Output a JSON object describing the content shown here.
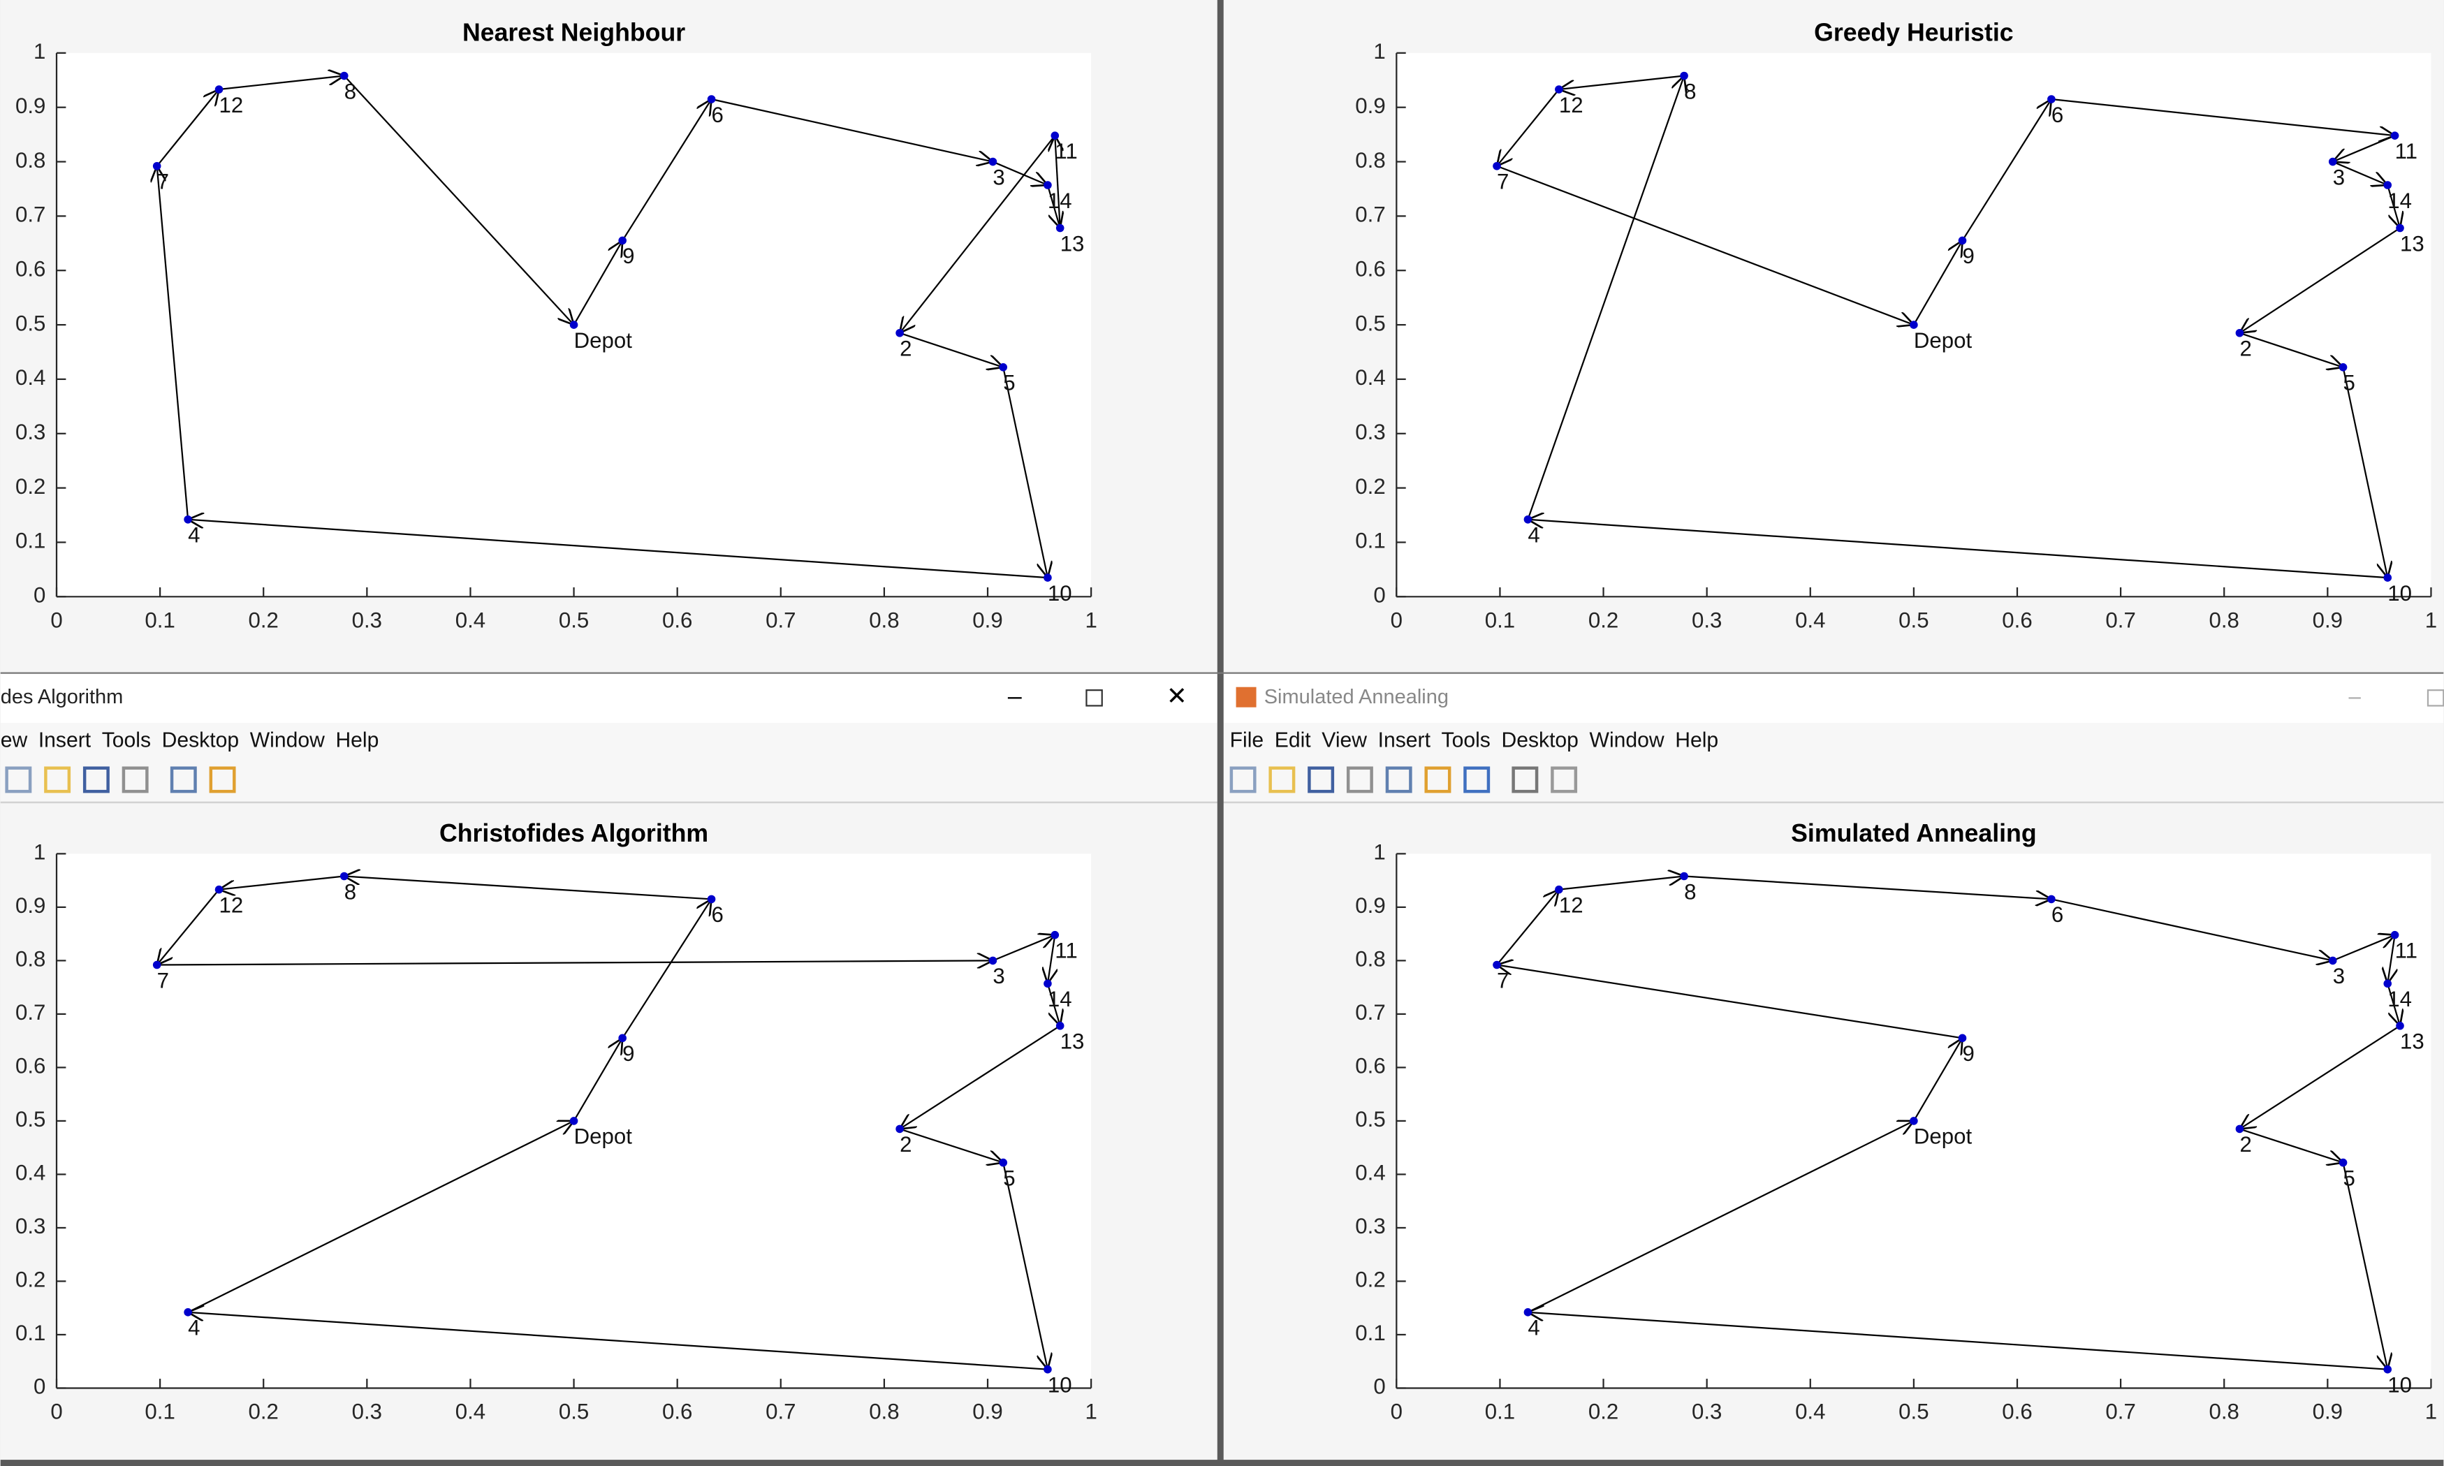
{
  "chart_data": [
    {
      "type": "route",
      "title": "Nearest Neighbour",
      "closed": true,
      "color": "#0000cc",
      "line_color": "#000000",
      "point_labels": [
        "Depot",
        "9",
        "6",
        "3",
        "14",
        "13",
        "11",
        "2",
        "5",
        "10",
        "4",
        "7",
        "12",
        "8"
      ],
      "x": [
        0.5,
        0.547,
        0.633,
        0.905,
        0.958,
        0.97,
        0.965,
        0.815,
        0.915,
        0.958,
        0.127,
        0.097,
        0.157,
        0.278
      ],
      "values": [
        0.5,
        0.655,
        0.915,
        0.8,
        0.757,
        0.678,
        0.848,
        0.485,
        0.422,
        0.035,
        0.142,
        0.792,
        0.933,
        0.958
      ],
      "xlim": [
        0,
        1
      ],
      "ylim": [
        0,
        1
      ],
      "xticks": [
        0,
        0.1,
        0.2,
        0.3,
        0.4,
        0.5,
        0.6,
        0.7,
        0.8,
        0.9,
        1
      ],
      "yticks": [
        0,
        0.1,
        0.2,
        0.3,
        0.4,
        0.5,
        0.6,
        0.7,
        0.8,
        0.9,
        1
      ]
    },
    {
      "type": "route",
      "title": "Greedy Heuristic",
      "closed": true,
      "color": "#0000cc",
      "line_color": "#000000",
      "point_labels": [
        "Depot",
        "9",
        "6",
        "11",
        "3",
        "14",
        "13",
        "2",
        "5",
        "10",
        "4",
        "8",
        "12",
        "7"
      ],
      "x": [
        0.5,
        0.547,
        0.633,
        0.965,
        0.905,
        0.958,
        0.97,
        0.815,
        0.915,
        0.958,
        0.127,
        0.278,
        0.157,
        0.097
      ],
      "values": [
        0.5,
        0.655,
        0.915,
        0.848,
        0.8,
        0.757,
        0.678,
        0.485,
        0.422,
        0.035,
        0.142,
        0.958,
        0.933,
        0.792
      ],
      "xlim": [
        0,
        1
      ],
      "ylim": [
        0,
        1
      ],
      "xticks": [
        0,
        0.1,
        0.2,
        0.3,
        0.4,
        0.5,
        0.6,
        0.7,
        0.8,
        0.9,
        1
      ],
      "yticks": [
        0,
        0.1,
        0.2,
        0.3,
        0.4,
        0.5,
        0.6,
        0.7,
        0.8,
        0.9,
        1
      ]
    },
    {
      "type": "route",
      "title": "Christofides Algorithm",
      "closed": true,
      "color": "#0000cc",
      "line_color": "#000000",
      "point_labels": [
        "Depot",
        "9",
        "6",
        "8",
        "12",
        "7",
        "3",
        "11",
        "14",
        "13",
        "2",
        "5",
        "10",
        "4"
      ],
      "x": [
        0.5,
        0.547,
        0.633,
        0.278,
        0.157,
        0.097,
        0.905,
        0.965,
        0.958,
        0.97,
        0.815,
        0.915,
        0.958,
        0.127
      ],
      "values": [
        0.5,
        0.655,
        0.915,
        0.958,
        0.933,
        0.792,
        0.8,
        0.848,
        0.757,
        0.678,
        0.485,
        0.422,
        0.035,
        0.142
      ],
      "xlim": [
        0,
        1
      ],
      "ylim": [
        0,
        1
      ],
      "xticks": [
        0,
        0.1,
        0.2,
        0.3,
        0.4,
        0.5,
        0.6,
        0.7,
        0.8,
        0.9,
        1
      ],
      "yticks": [
        0,
        0.1,
        0.2,
        0.3,
        0.4,
        0.5,
        0.6,
        0.7,
        0.8,
        0.9,
        1
      ]
    },
    {
      "type": "route",
      "title": "Simulated Annealing",
      "closed": true,
      "color": "#0000cc",
      "line_color": "#000000",
      "point_labels": [
        "Depot",
        "9",
        "7",
        "12",
        "8",
        "6",
        "3",
        "11",
        "14",
        "13",
        "2",
        "5",
        "10",
        "4"
      ],
      "x": [
        0.5,
        0.547,
        0.097,
        0.157,
        0.278,
        0.633,
        0.905,
        0.965,
        0.958,
        0.97,
        0.815,
        0.915,
        0.958,
        0.127
      ],
      "values": [
        0.5,
        0.655,
        0.792,
        0.933,
        0.958,
        0.915,
        0.8,
        0.848,
        0.757,
        0.678,
        0.485,
        0.422,
        0.035,
        0.142
      ],
      "xlim": [
        0,
        1
      ],
      "ylim": [
        0,
        1
      ],
      "xticks": [
        0,
        0.1,
        0.2,
        0.3,
        0.4,
        0.5,
        0.6,
        0.7,
        0.8,
        0.9,
        1
      ],
      "yticks": [
        0,
        0.1,
        0.2,
        0.3,
        0.4,
        0.5,
        0.6,
        0.7,
        0.8,
        0.9,
        1
      ]
    }
  ],
  "windows": [
    {
      "title": "des Algorithm",
      "menu": [
        "ew",
        "Insert",
        "Tools",
        "Desktop",
        "Window",
        "Help"
      ]
    },
    {
      "title": "Simulated Annealing",
      "menu": [
        "File",
        "Edit",
        "View",
        "Insert",
        "Tools",
        "Desktop",
        "Window",
        "Help"
      ]
    }
  ]
}
